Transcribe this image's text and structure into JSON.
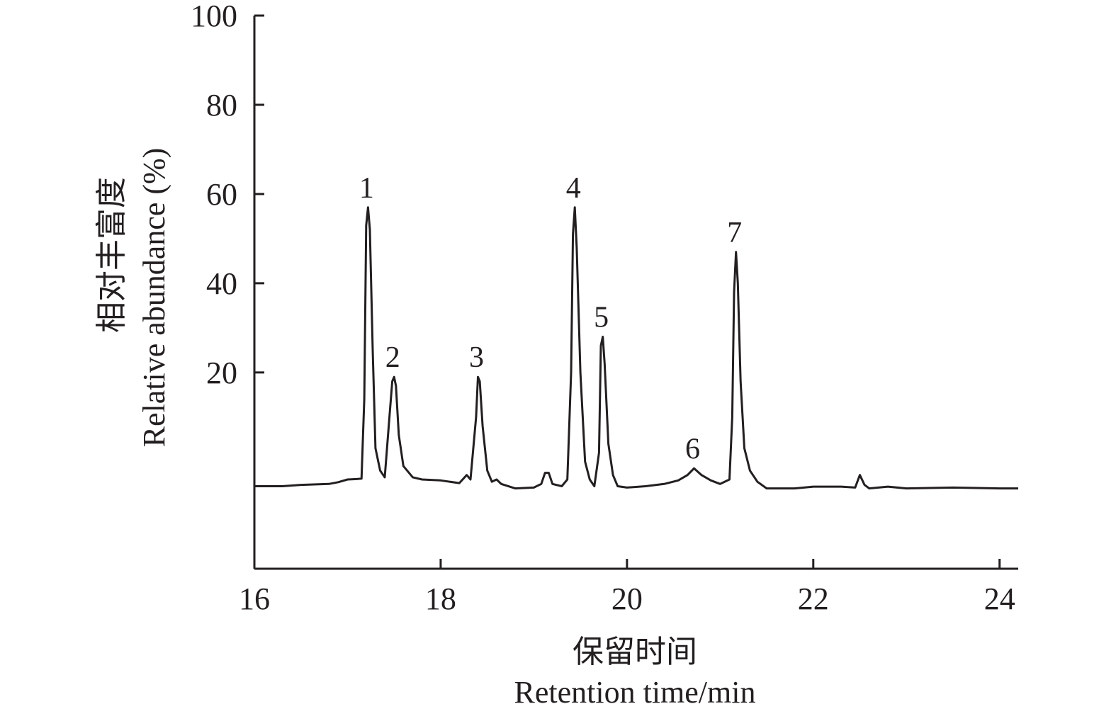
{
  "chart_data": {
    "type": "line",
    "title": "",
    "xlabel_cn": "保留时间",
    "xlabel_en": "Retention time/min",
    "ylabel_cn": "相对丰富度",
    "ylabel_en": "Relative abundance (%)",
    "xlim": [
      16,
      24.2
    ],
    "ylim": [
      -24,
      100
    ],
    "xticks": [
      16,
      18,
      20,
      22,
      24
    ],
    "yticks": [
      20,
      40,
      60,
      80,
      100
    ],
    "grid": false,
    "legend": "none",
    "line_color": "#231f20",
    "series": [
      {
        "points": [
          [
            16.0,
            -5.5
          ],
          [
            16.3,
            -5.5
          ],
          [
            16.5,
            -5.2
          ],
          [
            16.8,
            -5.0
          ],
          [
            16.9,
            -4.6
          ],
          [
            17.0,
            -4.0
          ],
          [
            17.1,
            -3.9
          ],
          [
            17.15,
            -3.8
          ],
          [
            17.18,
            14.0
          ],
          [
            17.2,
            53.0
          ],
          [
            17.22,
            57.0
          ],
          [
            17.24,
            52.0
          ],
          [
            17.27,
            25.0
          ],
          [
            17.3,
            3.0
          ],
          [
            17.35,
            -2.0
          ],
          [
            17.4,
            -3.5
          ],
          [
            17.45,
            10.0
          ],
          [
            17.48,
            18.0
          ],
          [
            17.5,
            19.0
          ],
          [
            17.52,
            17.0
          ],
          [
            17.55,
            6.0
          ],
          [
            17.6,
            -1.0
          ],
          [
            17.7,
            -3.5
          ],
          [
            17.8,
            -4.0
          ],
          [
            18.0,
            -4.2
          ],
          [
            18.2,
            -4.8
          ],
          [
            18.28,
            -3.0
          ],
          [
            18.32,
            -4.0
          ],
          [
            18.38,
            10.0
          ],
          [
            18.4,
            19.0
          ],
          [
            18.42,
            18.0
          ],
          [
            18.45,
            8.0
          ],
          [
            18.5,
            -2.0
          ],
          [
            18.55,
            -4.5
          ],
          [
            18.6,
            -4.0
          ],
          [
            18.65,
            -5.0
          ],
          [
            18.8,
            -6.0
          ],
          [
            19.0,
            -5.8
          ],
          [
            19.08,
            -5.0
          ],
          [
            19.12,
            -2.5
          ],
          [
            19.16,
            -2.5
          ],
          [
            19.2,
            -5.0
          ],
          [
            19.3,
            -5.5
          ],
          [
            19.36,
            -4.0
          ],
          [
            19.4,
            20.0
          ],
          [
            19.42,
            51.0
          ],
          [
            19.44,
            57.0
          ],
          [
            19.46,
            48.0
          ],
          [
            19.5,
            20.0
          ],
          [
            19.55,
            0.0
          ],
          [
            19.6,
            -4.0
          ],
          [
            19.65,
            -5.5
          ],
          [
            19.7,
            2.0
          ],
          [
            19.72,
            26.0
          ],
          [
            19.74,
            28.0
          ],
          [
            19.76,
            22.0
          ],
          [
            19.8,
            4.0
          ],
          [
            19.85,
            -3.0
          ],
          [
            19.9,
            -5.5
          ],
          [
            20.0,
            -5.8
          ],
          [
            20.2,
            -5.5
          ],
          [
            20.4,
            -5.0
          ],
          [
            20.55,
            -4.2
          ],
          [
            20.65,
            -3.0
          ],
          [
            20.72,
            -1.5
          ],
          [
            20.8,
            -3.0
          ],
          [
            20.9,
            -4.2
          ],
          [
            21.0,
            -5.0
          ],
          [
            21.1,
            -4.0
          ],
          [
            21.13,
            10.0
          ],
          [
            21.15,
            38.0
          ],
          [
            21.17,
            47.0
          ],
          [
            21.19,
            40.0
          ],
          [
            21.22,
            18.0
          ],
          [
            21.26,
            3.0
          ],
          [
            21.32,
            -2.0
          ],
          [
            21.4,
            -4.5
          ],
          [
            21.5,
            -6.0
          ],
          [
            21.8,
            -6.0
          ],
          [
            22.0,
            -5.6
          ],
          [
            22.3,
            -5.6
          ],
          [
            22.45,
            -5.8
          ],
          [
            22.5,
            -3.0
          ],
          [
            22.55,
            -5.2
          ],
          [
            22.6,
            -6.0
          ],
          [
            22.8,
            -5.6
          ],
          [
            23.0,
            -6.0
          ],
          [
            23.5,
            -5.8
          ],
          [
            24.0,
            -6.0
          ],
          [
            24.2,
            -6.0
          ]
        ]
      }
    ],
    "peaks": [
      {
        "label": "1",
        "x": 17.22,
        "y": 57
      },
      {
        "label": "2",
        "x": 17.5,
        "y": 19
      },
      {
        "label": "3",
        "x": 18.4,
        "y": 19
      },
      {
        "label": "4",
        "x": 19.44,
        "y": 57
      },
      {
        "label": "5",
        "x": 19.74,
        "y": 28
      },
      {
        "label": "6",
        "x": 20.72,
        "y": -1.5
      },
      {
        "label": "7",
        "x": 21.17,
        "y": 47
      }
    ]
  }
}
